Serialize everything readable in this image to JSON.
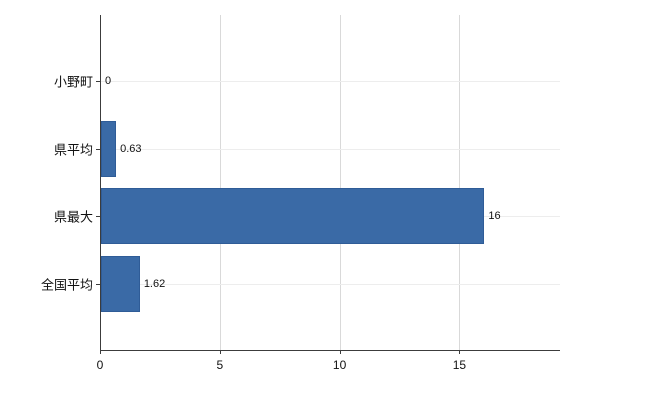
{
  "chart_data": {
    "type": "bar",
    "orientation": "horizontal",
    "title": "",
    "xlabel": "",
    "ylabel": "",
    "categories": [
      "小野町",
      "県平均",
      "県最大",
      "全国平均"
    ],
    "values": [
      0,
      0.63,
      16,
      1.62
    ],
    "value_labels": [
      "0",
      "0.63",
      "16",
      "1.62"
    ],
    "xlim": [
      0,
      19.2
    ],
    "xticks": [
      0,
      5,
      10,
      15
    ],
    "xtick_labels": [
      "0",
      "5",
      "10",
      "15"
    ],
    "grid": true,
    "legend": false,
    "bar_color": "#3a6aa6",
    "bar_border_color": "#2f5c97",
    "gridline_color": "#d9d9d9",
    "row_gridline_color": "#ededed",
    "axis_color": "#3c3c3c"
  }
}
